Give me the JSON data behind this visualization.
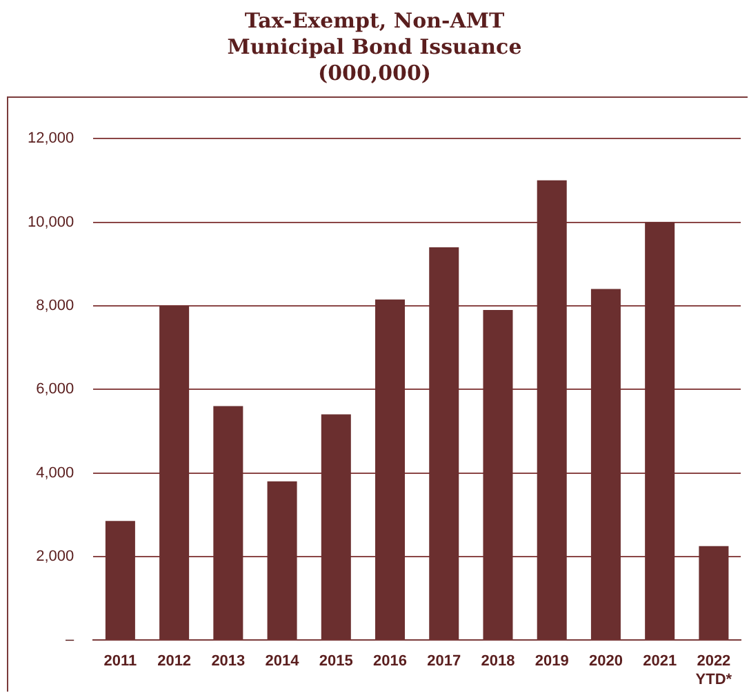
{
  "chart_data": {
    "type": "bar",
    "title": "Tax-Exempt, Non-AMT\nMunicipal Bond Issuance\n(000,000)",
    "categories": [
      "2011",
      "2012",
      "2013",
      "2014",
      "2015",
      "2016",
      "2017",
      "2018",
      "2019",
      "2020",
      "2021",
      "2022 YTD*"
    ],
    "values": [
      2850,
      8000,
      5600,
      3800,
      5400,
      8150,
      9400,
      7900,
      11000,
      8400,
      10000,
      2250
    ],
    "color": "#6b2f2f",
    "ylim": [
      0,
      12000
    ],
    "yticks": [
      {
        "value": 0,
        "label": "–"
      },
      {
        "value": 2000,
        "label": "2,000"
      },
      {
        "value": 4000,
        "label": "4,000"
      },
      {
        "value": 6000,
        "label": "6,000"
      },
      {
        "value": 8000,
        "label": "8,000"
      },
      {
        "value": 10000,
        "label": "10,000"
      },
      {
        "value": 12000,
        "label": "12,000"
      }
    ],
    "grid": "y",
    "legend": false
  }
}
